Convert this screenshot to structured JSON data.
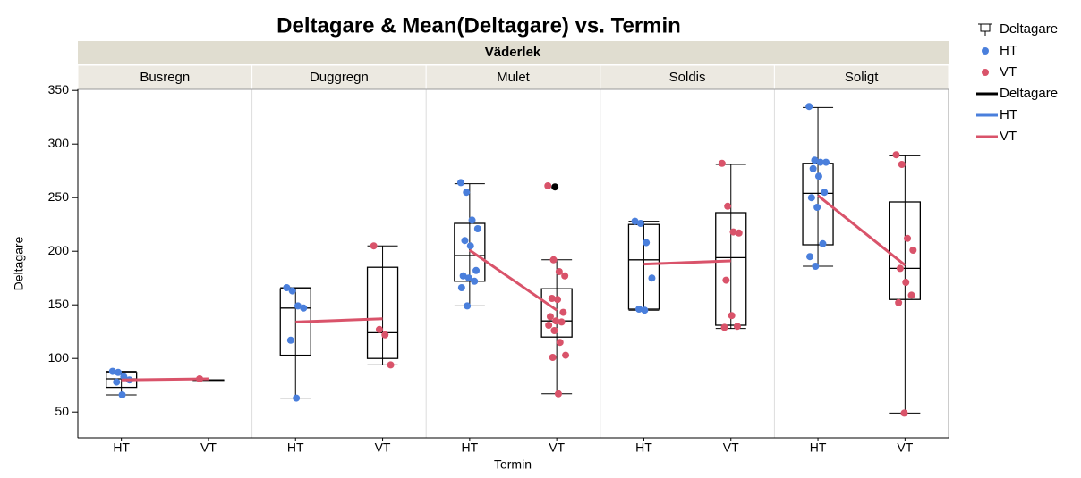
{
  "chart_data": {
    "type": "box",
    "title": "Deltagare & Mean(Deltagare) vs. Termin",
    "facet_title": "Väderlek",
    "x_label": "Termin",
    "y_label": "Deltagare",
    "ylim": [
      26,
      351
    ],
    "yticks": [
      50,
      100,
      150,
      200,
      250,
      300,
      350
    ],
    "series": [
      {
        "name": "HT",
        "color": "#4a7fdc"
      },
      {
        "name": "VT",
        "color": "#d9536a"
      }
    ],
    "mean_line_color": "#d9536a",
    "outlier_color": "#000000",
    "legend": [
      {
        "name": "Deltagare",
        "kind": "box",
        "color": "#000000"
      },
      {
        "name": "HT",
        "kind": "dot",
        "color": "#4a7fdc"
      },
      {
        "name": "VT",
        "kind": "dot",
        "color": "#d9536a"
      },
      {
        "name": "Deltagare",
        "kind": "line",
        "color": "#000000"
      },
      {
        "name": "HT",
        "kind": "line",
        "color": "#4a7fdc"
      },
      {
        "name": "VT",
        "kind": "line",
        "color": "#d9536a"
      }
    ],
    "panels": [
      {
        "name": "Busregn",
        "groups": [
          {
            "name": "HT",
            "min": 66,
            "q1": 73,
            "median": 81,
            "q3": 87,
            "max": 88,
            "mean": 80,
            "points": [
              88,
              87,
              83,
              80,
              78,
              66
            ]
          },
          {
            "name": "VT",
            "min": 80,
            "q1": 80,
            "median": 80,
            "q3": 80,
            "max": 80,
            "mean": 81,
            "points": [
              81
            ]
          }
        ]
      },
      {
        "name": "Duggregn",
        "groups": [
          {
            "name": "HT",
            "min": 63,
            "q1": 103,
            "median": 147,
            "q3": 165,
            "max": 166,
            "mean": 134,
            "points": [
              166,
              163,
              149,
              147,
              117,
              63
            ]
          },
          {
            "name": "VT",
            "min": 94,
            "q1": 100,
            "median": 124,
            "q3": 185,
            "max": 205,
            "mean": 137,
            "points": [
              205,
              127,
              122,
              94
            ]
          }
        ]
      },
      {
        "name": "Mulet",
        "groups": [
          {
            "name": "HT",
            "min": 149,
            "q1": 172,
            "median": 196,
            "q3": 226,
            "max": 263,
            "mean": 201,
            "points": [
              264,
              255,
              229,
              221,
              210,
              205,
              182,
              177,
              175,
              172,
              166,
              149
            ]
          },
          {
            "name": "VT",
            "min": 67,
            "q1": 120,
            "median": 135,
            "q3": 165,
            "max": 192,
            "mean": 145,
            "outliers": [
              260
            ],
            "points": [
              261,
              192,
              181,
              177,
              156,
              155,
              143,
              139,
              135,
              134,
              131,
              126,
              115,
              103,
              101,
              67
            ]
          }
        ]
      },
      {
        "name": "Soldis",
        "groups": [
          {
            "name": "HT",
            "min": 145,
            "q1": 146,
            "median": 192,
            "q3": 225,
            "max": 228,
            "mean": 188,
            "points": [
              228,
              226,
              208,
              175,
              146,
              145
            ]
          },
          {
            "name": "VT",
            "min": 128,
            "q1": 131,
            "median": 194,
            "q3": 236,
            "max": 281,
            "mean": 191,
            "points": [
              282,
              242,
              218,
              217,
              173,
              140,
              130,
              129
            ]
          }
        ]
      },
      {
        "name": "Soligt",
        "groups": [
          {
            "name": "HT",
            "min": 186,
            "q1": 206,
            "median": 254,
            "q3": 282,
            "max": 334,
            "mean": 252,
            "points": [
              335,
              285,
              283,
              283,
              277,
              270,
              255,
              250,
              241,
              207,
              195,
              186
            ]
          },
          {
            "name": "VT",
            "min": 49,
            "q1": 155,
            "median": 184,
            "q3": 246,
            "max": 289,
            "mean": 187,
            "points": [
              290,
              281,
              212,
              201,
              184,
              171,
              159,
              152,
              49
            ]
          }
        ]
      }
    ]
  }
}
